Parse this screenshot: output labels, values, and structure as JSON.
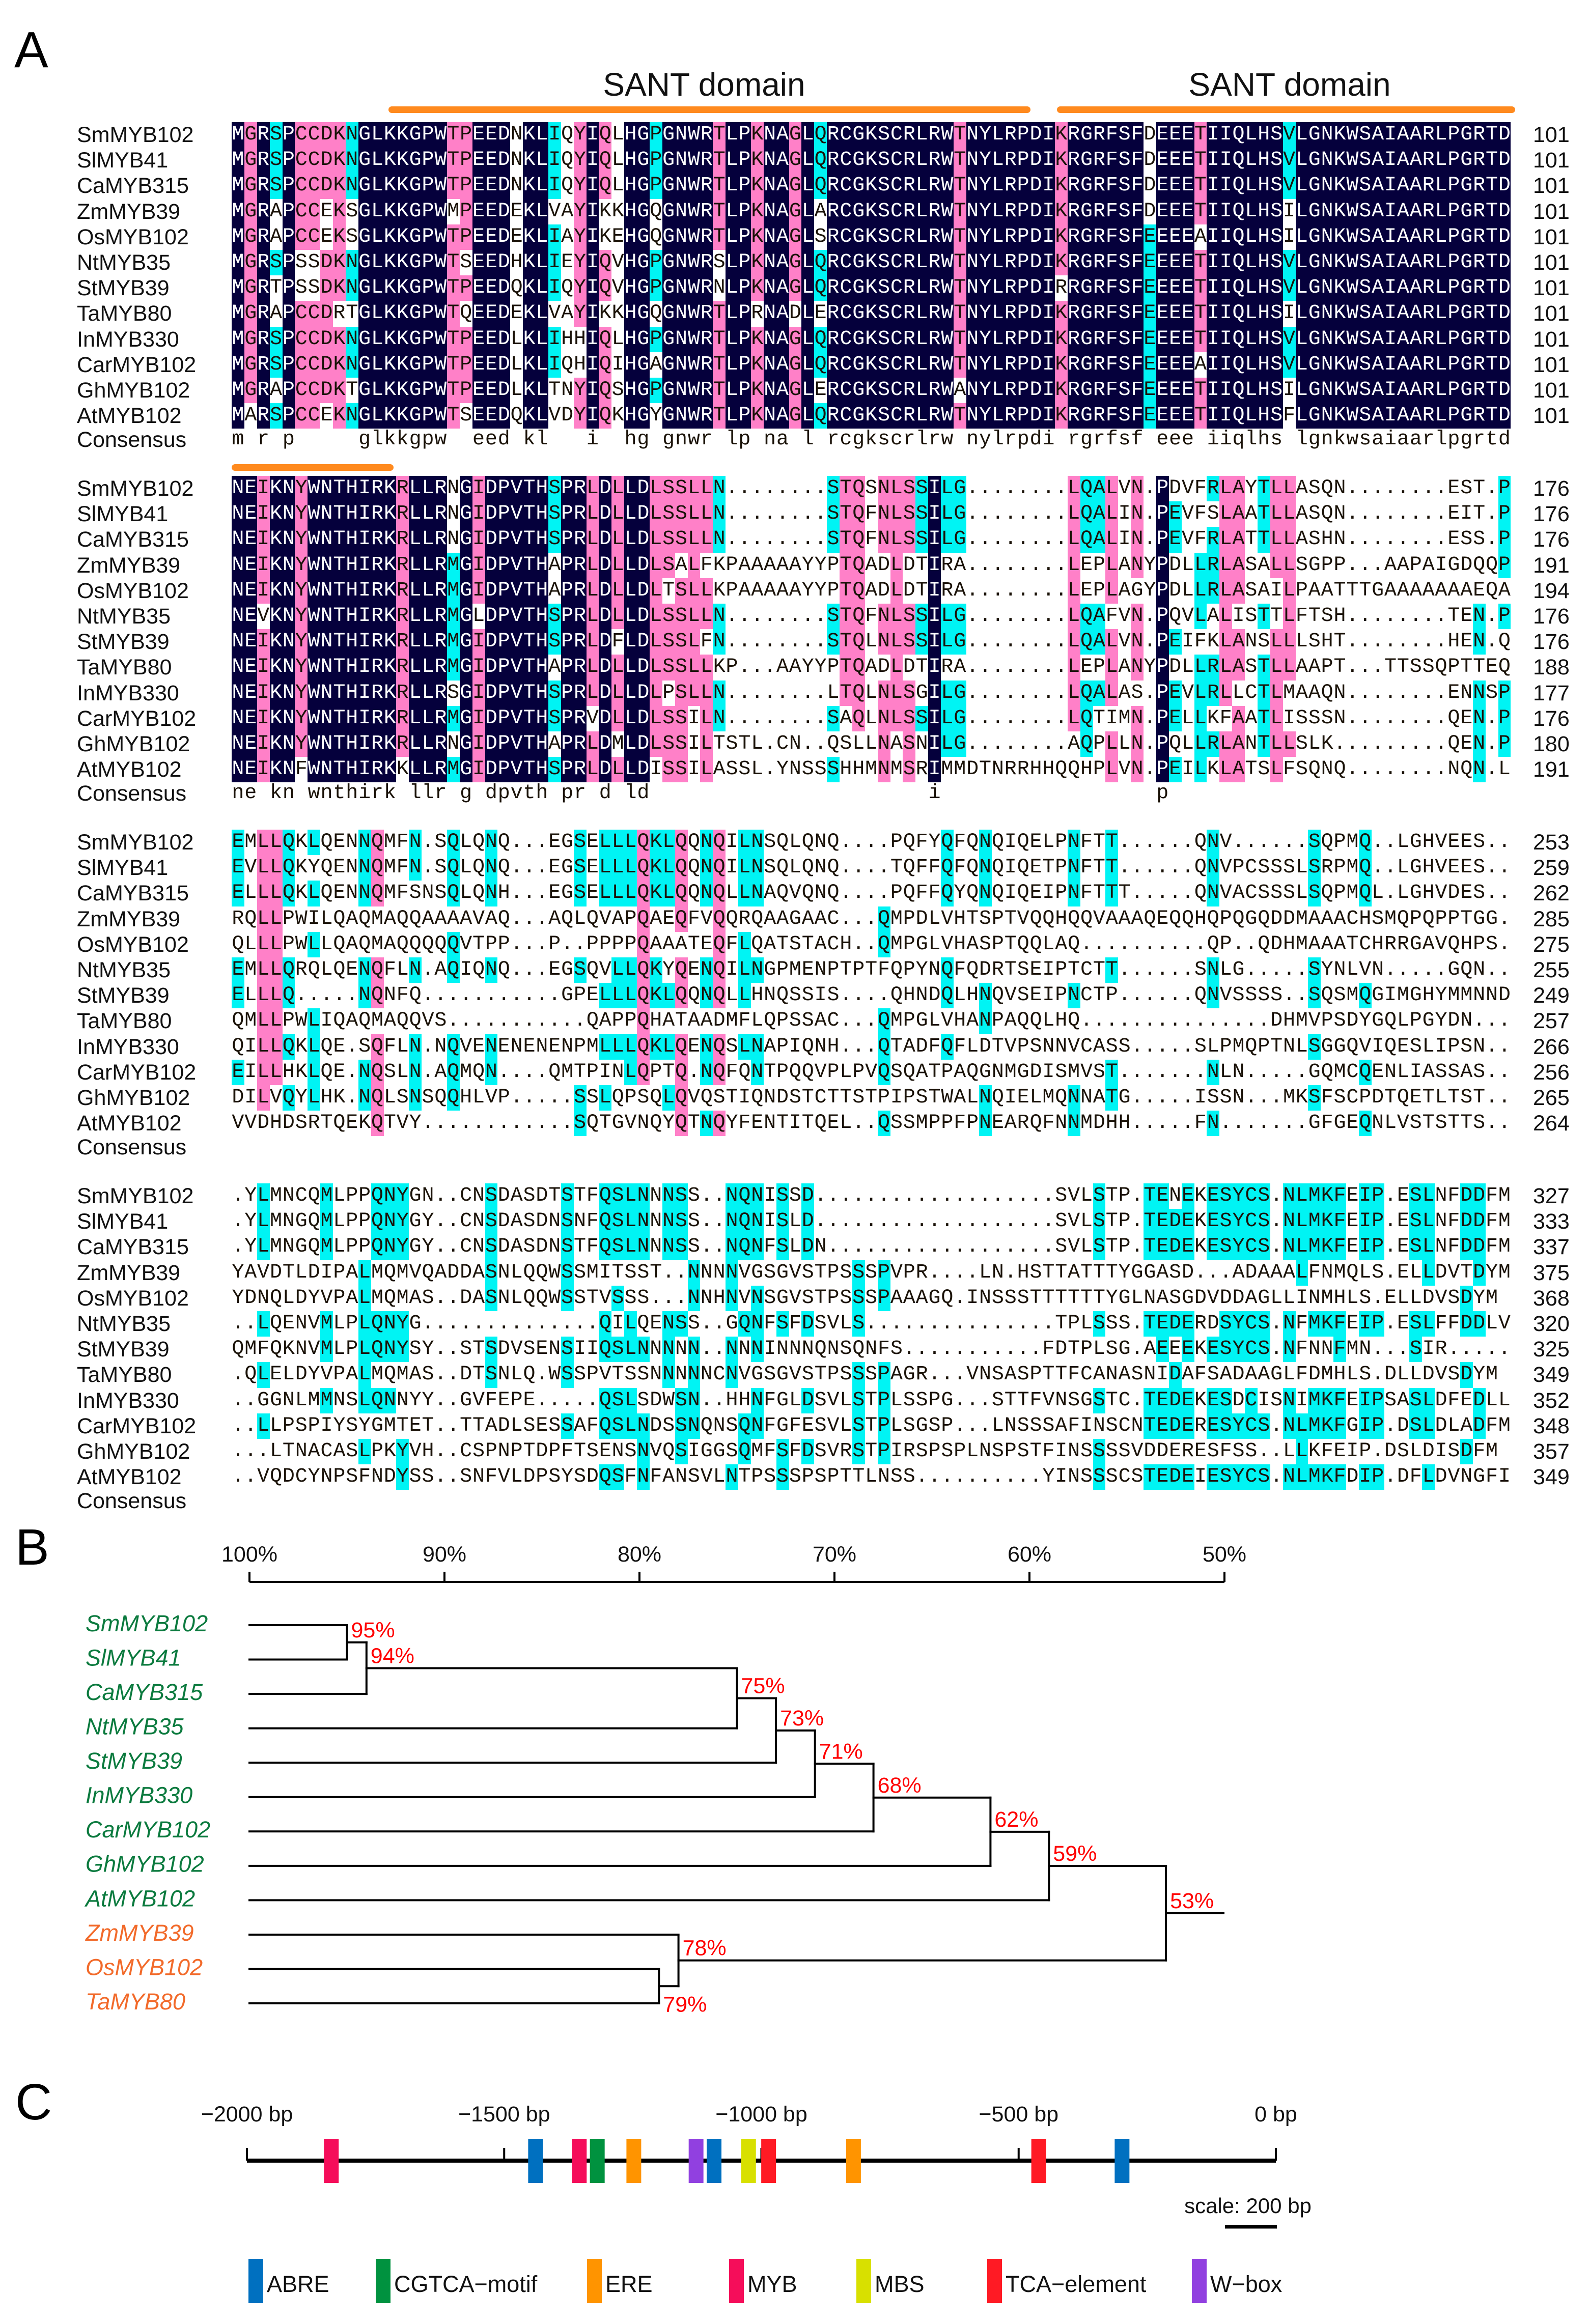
{
  "panels": {
    "a": "A",
    "b": "B",
    "c": "C"
  },
  "alignment": {
    "domain_labels": [
      "SANT domain",
      "SANT domain"
    ],
    "consensus_label": "Consensus",
    "colors": {
      "identical": "#05003c",
      "high": "#ff80c8",
      "medium": "#00f4f4",
      "domain_bar": "#ff8a1e"
    },
    "blocks": [
      {
        "rows": [
          {
            "name": "SmMYB102",
            "seq": "MGRSPCCDKNGLKKGPWTPEEDNKLIQYIQLHGPGNWRTLPKNAGLQRCGKSCRLRWTNYLRPDIKRGRFSFDEEETIIQLHSVLGNKWSAIAARLPGRTD",
            "end": "101"
          },
          {
            "name": "SlMYB41",
            "seq": "MGRSPCCDKNGLKKGPWTPEEDNKLIQYIQLHGPGNWRTLPKNAGLQRCGKSCRLRWTNYLRPDIKRGRFSFDEEETIIQLHSVLGNKWSAIAARLPGRTD",
            "end": "101"
          },
          {
            "name": "CaMYB315",
            "seq": "MGRSPCCDKNGLKKGPWTPEEDNKLIQYIQLHGPGNWRTLPKNAGLQRCGKSCRLRWTNYLRPDIKRGRFSFDEEETIIQLHSVLGNKWSAIAARLPGRTD",
            "end": "101"
          },
          {
            "name": "ZmMYB39",
            "seq": "MGRAPCCEKSGLKKGPWMPEEDEKLVAYIKKHGQGNWRTLPKNAGLARCGKSCRLRWTNYLRPDIKRGRFSFDEEETIIQLHSILGNKWSAIAARLPGRTD",
            "end": "101"
          },
          {
            "name": "OsMYB102",
            "seq": "MGRAPCCEKSGLKKGPWTPEEDEKLIAYIKEHGQGNWRTLPKNAGLSRCGKSCRLRWTNYLRPDIKRGRFSFEEEEAIIQLHSILGNKWSAIAARLPGRTD",
            "end": "101"
          },
          {
            "name": "NtMYB35",
            "seq": "MGRSPSSDKNGLKKGPWTSEEDHKLIEYIQVHGPGNWRSLPKNAGLQRCGKSCRLRWTNYLRPDIKRGRFSFEEEETIIQLHSVLGNKWSAIAARLPGRTD",
            "end": "101"
          },
          {
            "name": "StMYB39",
            "seq": "MGRTPSSDKNGLKKGPWTPEEDQKLIQYIQVHGPGNWRNLPKNAGLQRCGKSCRLRWTNYLRPDIRRGRFSFEEEETIIQLHSVLGNKWSAIAARLPGRTD",
            "end": "101"
          },
          {
            "name": "TaMYB80",
            "seq": "MGRAPCCDRTGLKKGPWTQEEDEKLVAYIKKHGQGNWRTLPRNADLERCGKSCRLRWTNYLRPDIKRGRFSFEEEETIIQLHSILGNKWSAIAARLPGRTD",
            "end": "101"
          },
          {
            "name": "InMYB330",
            "seq": "MGRSPCCDKNGLKKGPWTPEEDLKLIHHIQLHGPGNWRTLPKNAGLQRCGKSCRLRWTNYLRPDIKRGRFSFEEEETIIQLHSVLGNKWSAIAARLPGRTD",
            "end": "101"
          },
          {
            "name": "CarMYB102",
            "seq": "MGRSPCCDKNGLKKGPWTPEEDLKLIQHIQIHGAGNWRTLPKNAGLQRCGKSCRLRWTNYLRPDIKRGRFSFEEEEAIIQLHSVLGNKWSAIAARLPGRTD",
            "end": "101"
          },
          {
            "name": "GhMYB102",
            "seq": "MGRAPCCDKTGLKKGPWTPEEDLKLTNYIQSHGPGNWRTLPKNAGLERCGKSCRLRWANYLRPDIKRGRFSFEEEETIIQLHSILGNKWSAIAARLPGRTD",
            "end": "101"
          },
          {
            "name": "AtMYB102",
            "seq": "MARSPCCEKNGLKKGPWTSEEDQKLVDYIQKHGYGNWRTLPKNAGLQRCGKSCRLRWTNYLRPDIKRGRFSFEEEETIIQLHSFLGNKWSAIAARLPGRTD",
            "end": "101"
          }
        ],
        "consensus": "m r p     glkkgpw  eed kl   i  hg gnwr lp na l rcgkscrlrw nylrpdi rgrfsf eee iiqlhs lgnkwsaiaarlpgrtd"
      },
      {
        "rows": [
          {
            "name": "SmMYB102",
            "seq": "NEIKNYWNTHIRKRLLRNGIDPVTHSPRLDLLDLSSLLN........STQSNLSSILG........LQALVN.PDVFRLAYTLLASQN........EST.P",
            "end": "176"
          },
          {
            "name": "SlMYB41",
            "seq": "NEIKNYWNTHIRKRLLRNGIDPVTHSPRLDLLDLSSLLN........STQFNLSSILG........LQALIN.PEVFSLAATLLASQN........EIT.P",
            "end": "176"
          },
          {
            "name": "CaMYB315",
            "seq": "NEIKNYWNTHIRKRLLRNGIDPVTHSPRLDLLDLSSLLN........STQFNLSSILG........LQALIN.PEVFRLATTLLASHN........ESS.P",
            "end": "176"
          },
          {
            "name": "ZmMYB39",
            "seq": "NEIKNYWNTHIRKRLLRMGIDPVTHAPRLDLLDLSALFKPAAAAAYYPTQADLDTIRA........LEPLANYPDLLRLASALLSGPP...AAPAIGDQQP",
            "end": "191"
          },
          {
            "name": "OsMYB102",
            "seq": "NEIKNYWNTHIRKRLLRMGIDPVTHAPRLDLLDLTSLLKPAAAAAYYPTQADLDTIRA........LEPLAGYPDLLRLASAILPAATTTGAAAAAAAEQA",
            "end": "194"
          },
          {
            "name": "NtMYB35",
            "seq": "NEVKNYWNTHIRKRLLRMGLDPVTHSPRLDLLDLSSLLN........STQFNLSSILG........LQAFVN.PQVLALISTTLFTSH........TEN.P",
            "end": "176"
          },
          {
            "name": "StMYB39",
            "seq": "NEIKNYWNTHIRKRLLRMGIDPVTHSPRLDFLDLSSLFN........STQLNLSSILG........LQALVN.PEIFKLANSLLLSHT........HEN.Q",
            "end": "176"
          },
          {
            "name": "TaMYB80",
            "seq": "NEIKNYWNTHIRKRLLRMGIDPVTHAPRLDLLDLSSLLKP...AAYYPTQADLDTIRA........LEPLANYPDLLRLASTLLAAPT...TTSSQPTTEQ",
            "end": "188"
          },
          {
            "name": "InMYB330",
            "seq": "NEIKNYWNTHIRKRLLRSGIDPVTHSPRLDLLDLPSLLN........LTQLNLSGILG........LQALAS.PEVLRLLCTLMAAQN........ENNSP",
            "end": "177"
          },
          {
            "name": "CarMYB102",
            "seq": "NEIKNYWNTHIRKRLLRMGIDPVTHSPRVDLLDLSSILN........SAQLNLSSILG........LQTIMN.PELLKFAATLISSSN........QEN.P",
            "end": "176"
          },
          {
            "name": "GhMYB102",
            "seq": "NEIKNYWNTHIRKRLLRNGIDPVTHAPRLDMLDLSSILTSTL.CN..QSLLNASNILG........AQPLLN.PQLLRLANTLLSLK.........QEN.P",
            "end": "180"
          },
          {
            "name": "AtMYB102",
            "seq": "NEIKNFWNTHIRKKLLRMGIDPVTHSPRLDLLDISSILASSL.YNSSSHHMNMSRIMMDTNRRHHQQHPLVN.PEILKLATSLFSQNQ........NQN.L",
            "end": "191"
          }
        ],
        "consensus": "ne kn wnthirk llr g dpvth pr d ld                      i                 p"
      },
      {
        "rows": [
          {
            "name": "SmMYB102",
            "seq": "EMLLQKLQENNQMFN.SQLQNQ...EGSELLLQKLQQNQILNSQLQNQ....PQFYQFQNQIQELPNFTT......QNV......SQPMQ..LGHVEES..",
            "end": "253"
          },
          {
            "name": "SlMYB41",
            "seq": "EVLLQKYQENNQMFN.SQLQNQ...EGSELLLQKLQQNQILNSQLQNQ....TQFFQFQNQIQETPNFTT......QNVPCSSSLSRPMQ..LGHVEES..",
            "end": "259"
          },
          {
            "name": "CaMYB315",
            "seq": "ELLLQKLQENNQMFSNSQLQNH...EGSELLLQKLQQNQLLNAQVQNQ....PQFFQYQNQIQEIPNFTTT.....QNVACSSSLSQPMQL.LGHVDES..",
            "end": "262"
          },
          {
            "name": "ZmMYB39",
            "seq": "RQLLPWILQAQMAQQAAAAVAQ...AQLQVAPQAEQFVQQRQAAGAAC...QMPDLVHTSPTVQQHQQVAAAQEQQHQPQGQDDMAAACHSMQPQPPTGG.",
            "end": "285"
          },
          {
            "name": "OsMYB102",
            "seq": "QLLLPWLLQAQMAQQQQQVTPP...P..PPPPQAAATEQFLQATSTACH..QMPGLVHASPTQQLAQ..........QP..QDHMAAATCHRRGAVQHPS.",
            "end": "275"
          },
          {
            "name": "NtMYB35",
            "seq": "EMLLQRQLQENQFLN.AQIQNQ...EGSQVLLQKYQENQILNGPMENPTPTFQPYNQFQDRTSEIPTCTT......SNLG.....SYNLVN.....GQN..",
            "end": "255"
          },
          {
            "name": "StMYB39",
            "seq": "ELLLQ.....NQNFQ...........GPELLLQKLQQNQLLHNQSSIS....QHNDQLHNQVSEIPNCTP......QNVSSSS..SQSMQGIMGHYMMNND",
            "end": "249"
          },
          {
            "name": "TaMYB80",
            "seq": "QMLLPWLIQAQMAQQVS...........QAPPQHATAADMFLQPSSAC...QMPGLVHANPAQQLHQ...............DHMVPSDYGQLPGYDN...",
            "end": "257"
          },
          {
            "name": "InMYB330",
            "seq": "QILLQKLQE.SQFLN.NQVENENENENPMLLLQKLQENQSLNAPIQNH...QTADFQFLDTVPSNNVCASS.....SLPMQPTNLSGGQVIQESLIPSN..",
            "end": "266"
          },
          {
            "name": "CarMYB102",
            "seq": "EILLHKLQE.NQSLN.AQMQN....QMTPINLQPTQ.NQFQNTPQQVPLPVQSQATPAQGNMGDISMVST.......NLN.....GQMCQENLIASSAS..",
            "end": "256"
          },
          {
            "name": "GhMYB102",
            "seq": "DILVQYLHK.NQLSNSQQHLVP.....SSLQPSQLQVQSTIQNDSTCTTSTPIPSTWALNQIELMQNNATG.....ISSN...MKSFSCPDTQETLTST..",
            "end": "265"
          },
          {
            "name": "AtMYB102",
            "seq": "VVDHDSRTQEKQTVY............SQTGVNQYQTNQYFENTITQEL..QSSMPPFPNEARQFNNMDHH.....FN.......GFGEQNLVSTSTTS..",
            "end": "264"
          }
        ],
        "consensus": ""
      },
      {
        "rows": [
          {
            "name": "SmMYB102",
            "seq": ".YLMNCQMLPPQNYGN..CNSDASDTSTFQSLNNNSS..NQNISSD...................SVLSTP.TENEKESYCS.NLMKFEIP.ESLNFDDFM",
            "end": "327"
          },
          {
            "name": "SlMYB41",
            "seq": ".YLMNGQMLPPQNYGY..CNSDASDNSNFQSLNNNSS..NQNISLD...................SVLSTP.TEDEKESYCS.NLMKFEIP.ESLNFDDFM",
            "end": "333"
          },
          {
            "name": "CaMYB315",
            "seq": ".YLMNGQMLPPQNYGY..CNSDASDNSTFQSLNNNSS..NQNFSLDN..................SVLSTP.TEDEKESYCS.NLMKFEIP.ESLNFDDFM",
            "end": "337"
          },
          {
            "name": "ZmMYB39",
            "seq": "YAVDTLDIPALMQMVQADDASNLQQWSSMITSST..NNNNVGSGVSTPSSSPVPR....LN.HSTTATTTYGGASD...ADAAALFNMQLS.ELLDVTDYM",
            "end": "375"
          },
          {
            "name": "OsMYB102",
            "seq": "YDNQLDYVPALMQMAS..DASNLQQWSSTVSSS...NNHNVNSGVSTPSSSPAAAGQ.INSSSTTTTTTYGLNASGDVDDAGLLINMHLS.ELLDVSDYM",
            "end": "368"
          },
          {
            "name": "NtMYB35",
            "seq": "..LQENVMLPLQNYG..............QILQENSS..GQNFSFDSVLS...............TPLSSS.TEDERDSYCS.NFMKFEIP.ESLFFDDLV",
            "end": "320"
          },
          {
            "name": "StMYB39",
            "seq": "QMFQKNVMLPLQNYSY..STSDVSENSIIQSLNNNNN..NNNINNNQNSQNFS...........FDTPLSG.AEEEKESYCS.NFNNFMN...SIR.....",
            "end": "325"
          },
          {
            "name": "TaMYB80",
            "seq": ".QLELDYVPALMQMAS..DTSNLQ.WSSPVTSSNNNNNCNVGSGVSTPSSSPAGR...VNSASPTTFCANASNIDAFSADAAGLFDMHLS.DLLDVSDYM",
            "end": "349"
          },
          {
            "name": "InMYB330",
            "seq": "..GGNLMMNSLQNNYY..GVFEPE.....QSLSDWSN..HHNFGLDSVLSTPLSSPG...STTFVNSGSTC.TEDEKESDCISNIMKFEIPSASLDFEDLL",
            "end": "352"
          },
          {
            "name": "CarMYB102",
            "seq": "..LLPSPIYSYGMTET..TTADLSESSAFQSLNDSSNQNSQNFGFESVLSTPLSGSP...LNSSSAFINSCNTEDERESYCS.NLMKFGIP.DSLDLADFM",
            "end": "348"
          },
          {
            "name": "GhMYB102",
            "seq": "...LTNACASLPKYVH..CSPNPTDPFTSENSNVQSIGGSQMFSFDSVRSTPIRSPSPLNSPSTFINSSSSVDDERESFSS..LLKFEIP.DSLDISDFM",
            "end": "357"
          },
          {
            "name": "AtMYB102",
            "seq": "..VQDCYNPSFNDYSS..SNFVLDPSYSDQSFNFANSVLNTPSSSPSPTTLNSS..........YINSSSCSTEDEIESYCS.NLMKFDIP.DFLDVNGFI",
            "end": "349"
          }
        ],
        "consensus": ""
      }
    ]
  },
  "tree": {
    "axis_ticks": [
      {
        "identity": 100,
        "label": "100%"
      },
      {
        "identity": 90,
        "label": "90%"
      },
      {
        "identity": 80,
        "label": "80%"
      },
      {
        "identity": 70,
        "label": "70%"
      },
      {
        "identity": 60,
        "label": "60%"
      },
      {
        "identity": 50,
        "label": "50%"
      }
    ],
    "group_colors": {
      "dicot": "#0b7a3e",
      "monocot": "#f26a2a"
    },
    "label_color": "#ff0000",
    "leaves": [
      {
        "name": "SmMYB102",
        "group": "dicot"
      },
      {
        "name": "SlMYB41",
        "group": "dicot"
      },
      {
        "name": "CaMYB315",
        "group": "dicot"
      },
      {
        "name": "NtMYB35",
        "group": "dicot"
      },
      {
        "name": "StMYB39",
        "group": "dicot"
      },
      {
        "name": "InMYB330",
        "group": "dicot"
      },
      {
        "name": "CarMYB102",
        "group": "dicot"
      },
      {
        "name": "GhMYB102",
        "group": "dicot"
      },
      {
        "name": "AtMYB102",
        "group": "dicot"
      },
      {
        "name": "ZmMYB39",
        "group": "monocot"
      },
      {
        "name": "OsMYB102",
        "group": "monocot"
      },
      {
        "name": "TaMYB80",
        "group": "monocot"
      }
    ],
    "nodes": [
      {
        "id": "n95",
        "identity": 95,
        "label": "95%",
        "children": [
          "SmMYB102",
          "SlMYB41"
        ]
      },
      {
        "id": "n94",
        "identity": 94,
        "label": "94%",
        "children": [
          "n95",
          "CaMYB315"
        ]
      },
      {
        "id": "n75",
        "identity": 75,
        "label": "75%",
        "children": [
          "n94",
          "NtMYB35"
        ]
      },
      {
        "id": "n73",
        "identity": 73,
        "label": "73%",
        "children": [
          "n75",
          "StMYB39"
        ]
      },
      {
        "id": "n71",
        "identity": 71,
        "label": "71%",
        "children": [
          "n73",
          "InMYB330"
        ]
      },
      {
        "id": "n68",
        "identity": 68,
        "label": "68%",
        "children": [
          "n71",
          "CarMYB102"
        ]
      },
      {
        "id": "n62",
        "identity": 62,
        "label": "62%",
        "children": [
          "n68",
          "GhMYB102"
        ]
      },
      {
        "id": "n59",
        "identity": 59,
        "label": "59%",
        "children": [
          "n62",
          "AtMYB102"
        ]
      },
      {
        "id": "n79",
        "identity": 79,
        "label": "79%",
        "children": [
          "OsMYB102",
          "TaMYB80"
        ]
      },
      {
        "id": "n78",
        "identity": 78,
        "label": "78%",
        "children": [
          "ZmMYB39",
          "n79"
        ]
      },
      {
        "id": "n53",
        "identity": 53,
        "label": "53%",
        "children": [
          "n59",
          "n78"
        ]
      }
    ]
  },
  "promoter": {
    "axis_ticks": [
      {
        "bp": -2000,
        "label": "−2000 bp"
      },
      {
        "bp": -1500,
        "label": "−1500 bp"
      },
      {
        "bp": -1000,
        "label": "−1000 bp"
      },
      {
        "bp": -500,
        "label": "−500 bp"
      },
      {
        "bp": 0,
        "label": "0 bp"
      }
    ],
    "elements": [
      {
        "type": "MYB",
        "bp": -1836
      },
      {
        "type": "ABRE",
        "bp": -1439
      },
      {
        "type": "MYB",
        "bp": -1354
      },
      {
        "type": "CGTCA-motif",
        "bp": -1319
      },
      {
        "type": "ERE",
        "bp": -1248
      },
      {
        "type": "W-box",
        "bp": -1127
      },
      {
        "type": "ABRE",
        "bp": -1092
      },
      {
        "type": "MBS",
        "bp": -1025
      },
      {
        "type": "TCA-element",
        "bp": -986
      },
      {
        "type": "ERE",
        "bp": -821
      },
      {
        "type": "TCA-element",
        "bp": -461
      },
      {
        "type": "ABRE",
        "bp": -299
      }
    ],
    "legend": [
      {
        "name": "ABRE",
        "color": "#0070c0"
      },
      {
        "name": "CGTCA−motif",
        "key": "CGTCA-motif",
        "color": "#00923f"
      },
      {
        "name": "ERE",
        "color": "#ff9400"
      },
      {
        "name": "MYB",
        "color": "#f50d5a"
      },
      {
        "name": "MBS",
        "color": "#d8e000"
      },
      {
        "name": "TCA−element",
        "key": "TCA-element",
        "color": "#ff1a24"
      },
      {
        "name": "W−box",
        "key": "W-box",
        "color": "#9140e0"
      }
    ],
    "scale_label": "scale: 200 bp",
    "scale_bp": 200
  }
}
